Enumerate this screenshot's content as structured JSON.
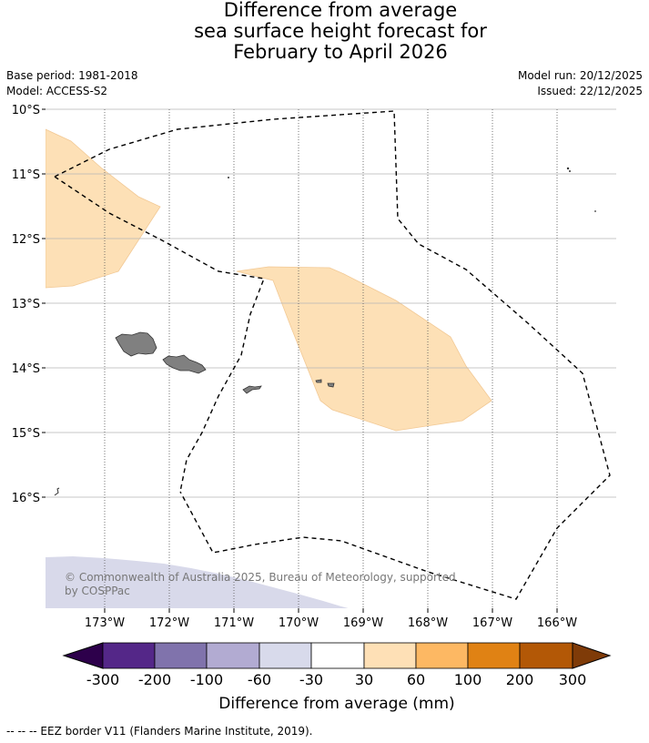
{
  "title": {
    "line1": "Difference from average",
    "line2": "sea surface height forecast for",
    "line3": "February to April 2026"
  },
  "meta": {
    "base_period": "Base period: 1981-2018",
    "model": "Model: ACCESS-S2",
    "model_run": "Model run: 20/12/2025",
    "issued": "Issued: 22/12/2025"
  },
  "map": {
    "lat_labels": [
      "10°S",
      "11°S",
      "12°S",
      "13°S",
      "14°S",
      "15°S",
      "16°S"
    ],
    "lon_labels": [
      "173°W",
      "172°W",
      "171°W",
      "170°W",
      "169°W",
      "168°W",
      "167°W",
      "166°W"
    ],
    "copyright_line1": "© Commonwealth of Australia 2025, Bureau of Meteorology, supported",
    "copyright_line2": "by COSPPac",
    "colors": {
      "anomaly_30_60": "#fde0b6",
      "anomaly_minus60_minus30": "#d8d9ea",
      "land": "#808080",
      "grid": "#b4b4b4"
    }
  },
  "colorbar": {
    "ticks": [
      "-300",
      "-200",
      "-100",
      "-60",
      "-30",
      "30",
      "60",
      "100",
      "200",
      "300"
    ],
    "colors": [
      "#2d004b",
      "#542788",
      "#8073ac",
      "#b2abd2",
      "#d8daeb",
      "#ffffff",
      "#fee0b6",
      "#fdb863",
      "#e08214",
      "#b35806",
      "#7f3b08"
    ],
    "label": "Difference from average (mm)"
  },
  "legend": {
    "eez": "--  --  -- EEZ border V11 (Flanders Marine Institute, 2019)."
  }
}
